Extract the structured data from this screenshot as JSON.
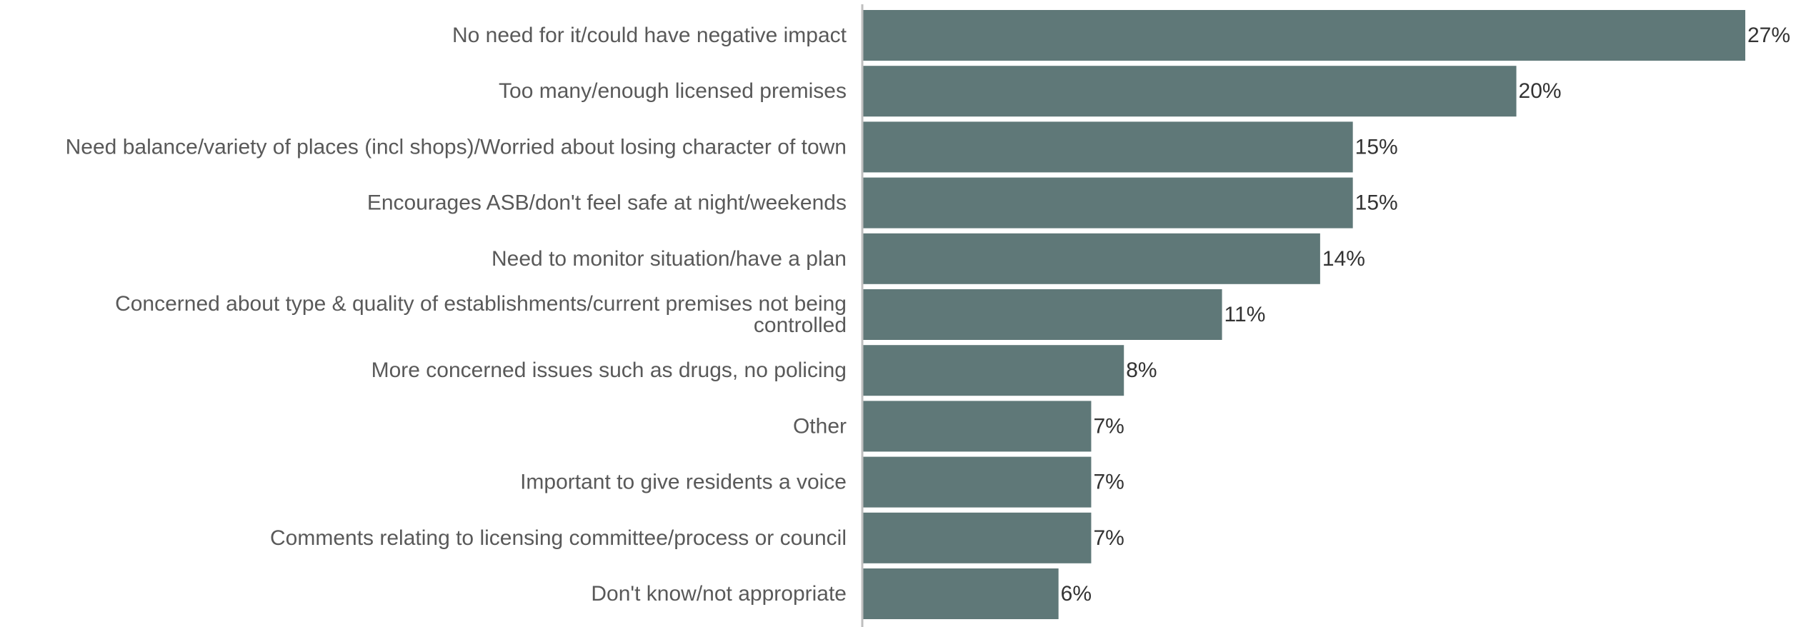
{
  "chart_data": {
    "type": "bar",
    "orientation": "horizontal",
    "title": "",
    "xlabel": "",
    "ylabel": "",
    "xlim": [
      0,
      27
    ],
    "grid": false,
    "legend": "none",
    "value_suffix": "%",
    "bar_color": "#5f7878",
    "axis_color": "#bfbfbf",
    "categories": [
      [
        "No need for it/could have negative impact"
      ],
      [
        "Too many/enough licensed premises"
      ],
      [
        "Need balance/variety of places (incl shops)/Worried about losing character of town"
      ],
      [
        "Encourages ASB/don't feel safe at night/weekends"
      ],
      [
        "Need to monitor situation/have a plan"
      ],
      [
        "Concerned about type & quality of establishments/current premises not being",
        "controlled"
      ],
      [
        "More concerned issues such as drugs, no policing"
      ],
      [
        "Other"
      ],
      [
        "Important to give residents a voice"
      ],
      [
        "Comments relating to licensing committee/process or council"
      ],
      [
        "Don't know/not appropriate"
      ]
    ],
    "values": [
      27,
      20,
      15,
      15,
      14,
      11,
      8,
      7,
      7,
      7,
      6
    ],
    "value_labels": [
      "27%",
      "20%",
      "15%",
      "15%",
      "14%",
      "11%",
      "8%",
      "7%",
      "7%",
      "7%",
      "6%"
    ]
  }
}
